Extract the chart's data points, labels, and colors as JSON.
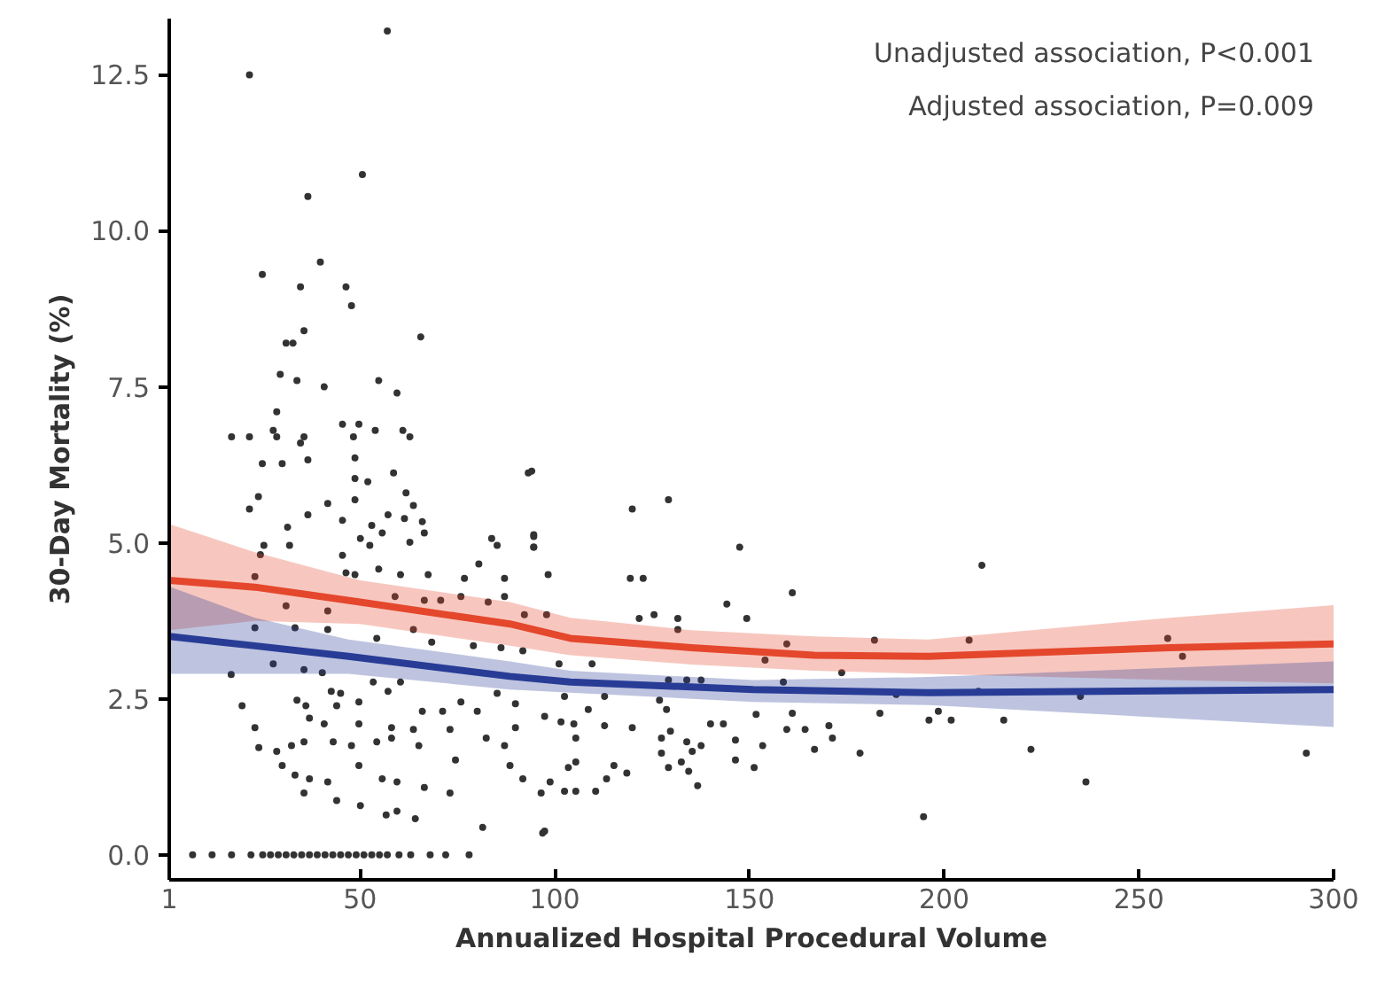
{
  "chart_data": {
    "type": "scatter",
    "xlabel": "Annualized Hospital Procedural Volume",
    "ylabel": "30-Day Mortality (%)",
    "annotations": [
      "Unadjusted association, P<0.001",
      "Adjusted association, P=0.009"
    ],
    "xlim": [
      1,
      300
    ],
    "xticks": [
      1,
      50,
      100,
      150,
      200,
      250,
      300
    ],
    "ylim": [
      -0.4,
      13.4
    ],
    "yticks": [
      {
        "value": 0,
        "label": "0.0"
      },
      {
        "value": 2.5,
        "label": "2.5"
      },
      {
        "value": 5,
        "label": "5.0"
      },
      {
        "value": 7.5,
        "label": "7.5"
      },
      {
        "value": 10,
        "label": "10.0"
      },
      {
        "value": 12.5,
        "label": "12.5"
      }
    ],
    "grid": false,
    "series": [
      {
        "marker": "circle",
        "color": "#333333",
        "x": [
          57,
          21.6,
          50.6,
          36.6,
          39.8,
          24.9,
          34.7,
          46.4,
          47.8,
          65.6,
          35.6,
          31,
          32.8,
          29.5,
          33.8,
          40.8,
          54.8,
          59.5,
          28.6,
          27.7,
          17,
          21.6,
          28.6,
          35.6,
          45.5,
          49.7,
          53.9,
          48.3,
          61,
          62.8,
          34.7,
          24.9,
          30,
          36.6,
          48.7,
          58.6,
          48.7,
          52,
          23.9,
          48.7,
          61.8,
          63.7,
          21.6,
          41.7,
          93.2,
          36.6,
          45.5,
          53,
          57.2,
          61.4,
          66,
          31.4,
          55.7,
          66.5,
          50.1,
          62.8,
          83.8,
          85.2,
          94.6,
          94.6,
          31.9,
          25.3,
          52.5,
          45.5,
          76.8,
          80.5,
          46.4,
          48.7,
          54.8,
          60.4,
          67.5,
          87.1,
          87.1,
          24.4,
          23,
          31,
          41.7,
          59,
          66.5,
          70.7,
          75.9,
          82.9,
          92.2,
          23,
          33.3,
          41.7,
          54.3,
          63.7,
          68.4,
          79.1,
          86.2,
          91.8,
          16.9,
          27.7,
          35.6,
          40.3,
          53.4,
          60.4,
          19.7,
          33.8,
          36.1,
          42.6,
          45,
          44,
          49.7,
          57.2,
          66,
          71.2,
          75.9,
          80.1,
          85.2,
          37,
          40.8,
          49.7,
          58.1,
          63.7,
          73.1,
          82.4,
          87.1,
          23,
          24,
          28.6,
          32.4,
          35.6,
          43.1,
          47.8,
          54.3,
          58.1,
          65.1,
          30,
          33.3,
          37,
          41.7,
          49.7,
          55.7,
          59.5,
          66.5,
          74.5,
          35.6,
          44,
          50.1,
          56.7,
          59.5,
          64.2,
          73.1,
          81.5,
          96.9,
          7,
          12,
          17,
          22,
          25,
          27,
          29,
          31,
          33,
          35,
          37,
          39,
          41,
          43,
          45,
          47,
          49,
          51,
          53,
          55,
          57,
          60,
          63,
          68,
          72,
          78,
          94.1,
          94.6,
          94.6,
          98.3,
          119.9,
          129.2,
          147.5,
          119.4,
          122.7,
          161,
          144.2,
          149.3,
          121.7,
          125.5,
          131.6,
          131.6,
          97.9,
          182.1,
          159.6,
          154,
          173.7,
          101.1,
          109.6,
          129.2,
          133.9,
          137.6,
          158.7,
          102.5,
          112.8,
          126.9,
          89.9,
          128.7,
          187.7,
          151.7,
          161,
          183.5,
          196.1,
          97.4,
          101.6,
          104.9,
          108.6,
          89.9,
          112.8,
          119.9,
          129.7,
          140,
          143.3,
          159.6,
          164.3,
          170.4,
          127.4,
          105.4,
          133.9,
          137.6,
          146.4,
          153.4,
          171.3,
          166.7,
          178.4,
          127.4,
          135.3,
          88.5,
          103.5,
          105.4,
          115.2,
          118.5,
          129.2,
          132.5,
          134.4,
          146.4,
          151.2,
          91.8,
          98.8,
          96.5,
          102.5,
          105.4,
          110.5,
          113.3,
          136.7,
          97.4,
          194.7,
          209.7,
          206.4,
          257.4,
          261.2,
          208.8,
          235,
          198.5,
          201.8,
          215.3,
          222.3,
          293,
          236.4
        ],
        "values": [
          13.2,
          12.5,
          10.9,
          10.55,
          9.5,
          9.3,
          9.1,
          9.1,
          8.8,
          8.3,
          8.4,
          8.2,
          8.2,
          7.7,
          7.6,
          7.5,
          7.6,
          7.4,
          7.1,
          6.8,
          6.7,
          6.7,
          6.7,
          6.7,
          6.9,
          6.9,
          6.8,
          6.7,
          6.8,
          6.7,
          6.6,
          6.27,
          6.27,
          6.33,
          6.36,
          6.12,
          6.03,
          5.98,
          5.74,
          5.69,
          5.8,
          5.6,
          5.54,
          5.63,
          6.12,
          5.45,
          5.36,
          5.28,
          5.45,
          5.39,
          5.34,
          5.25,
          5.16,
          5.16,
          5.07,
          5.01,
          5.07,
          4.96,
          5.1,
          4.93,
          4.96,
          4.96,
          4.96,
          4.8,
          4.43,
          4.66,
          4.52,
          4.49,
          4.58,
          4.49,
          4.49,
          4.43,
          4.14,
          4.81,
          4.46,
          3.99,
          3.91,
          4.14,
          4.08,
          4.08,
          4.14,
          4.05,
          3.85,
          3.64,
          3.64,
          3.61,
          3.47,
          3.61,
          3.41,
          3.35,
          3.32,
          3.27,
          2.89,
          3.06,
          2.97,
          2.92,
          2.77,
          2.77,
          2.39,
          2.48,
          2.39,
          2.62,
          2.59,
          2.39,
          2.45,
          2.62,
          2.3,
          2.3,
          2.45,
          2.3,
          2.59,
          2.19,
          2.1,
          2.1,
          2.04,
          2.01,
          2.01,
          1.87,
          1.75,
          2.04,
          1.72,
          1.66,
          1.75,
          1.81,
          1.81,
          1.75,
          1.81,
          1.87,
          1.75,
          1.43,
          1.28,
          1.22,
          1.17,
          1.43,
          1.22,
          1.17,
          1.08,
          1.52,
          0.99,
          0.87,
          0.79,
          0.64,
          0.7,
          0.58,
          0.99,
          0.44,
          0.35,
          0,
          0,
          0,
          0,
          0,
          0,
          0,
          0,
          0,
          0,
          0,
          0,
          0,
          0,
          0,
          0,
          0,
          0,
          0,
          0,
          0,
          0,
          0,
          0,
          0,
          0,
          6.15,
          5.13,
          4.93,
          4.49,
          5.54,
          5.69,
          4.93,
          4.43,
          4.43,
          4.2,
          4.02,
          3.79,
          3.79,
          3.85,
          3.79,
          3.61,
          3.85,
          3.44,
          3.38,
          3.12,
          2.92,
          3.06,
          3.06,
          2.8,
          2.8,
          2.8,
          2.77,
          2.54,
          2.54,
          2.48,
          2.42,
          2.33,
          2.57,
          2.25,
          2.27,
          2.27,
          2.16,
          2.22,
          2.13,
          2.1,
          2.33,
          2.04,
          2.07,
          2.04,
          1.98,
          2.1,
          2.1,
          2.01,
          2.01,
          2.07,
          1.87,
          1.87,
          1.81,
          1.75,
          1.84,
          1.75,
          1.87,
          1.69,
          1.63,
          1.63,
          1.66,
          1.43,
          1.4,
          1.49,
          1.43,
          1.31,
          1.4,
          1.49,
          1.34,
          1.52,
          1.4,
          1.22,
          1.17,
          0.99,
          1.02,
          1.02,
          1.02,
          1.22,
          1.11,
          0.38,
          0.61,
          4.64,
          3.44,
          3.47,
          3.18,
          2.62,
          2.54,
          2.3,
          2.16,
          2.16,
          1.69,
          1.63,
          1.17
        ]
      },
      {
        "type": "line",
        "color": "#e4472c",
        "x": [
          1,
          23,
          50,
          88.5,
          104,
          135,
          166.6,
          196,
          258,
          300
        ],
        "values": [
          4.4,
          4.29,
          4.05,
          3.7,
          3.47,
          3.32,
          3.2,
          3.18,
          3.32,
          3.38
        ],
        "lower": [
          3.6,
          3.75,
          3.7,
          3.35,
          3.2,
          3.05,
          2.95,
          2.9,
          2.8,
          2.75
        ],
        "upper": [
          5.3,
          4.85,
          4.4,
          4.05,
          3.8,
          3.6,
          3.5,
          3.45,
          3.8,
          4.0
        ]
      },
      {
        "type": "line",
        "color": "#283c96",
        "x": [
          1,
          23,
          47,
          88.5,
          104,
          151,
          196,
          300
        ],
        "values": [
          3.5,
          3.35,
          3.18,
          2.86,
          2.77,
          2.65,
          2.6,
          2.65
        ],
        "lower": [
          2.9,
          2.9,
          2.9,
          2.65,
          2.6,
          2.45,
          2.4,
          2.05
        ],
        "upper": [
          4.3,
          3.8,
          3.45,
          3.1,
          2.95,
          2.8,
          2.85,
          3.1
        ]
      }
    ]
  }
}
